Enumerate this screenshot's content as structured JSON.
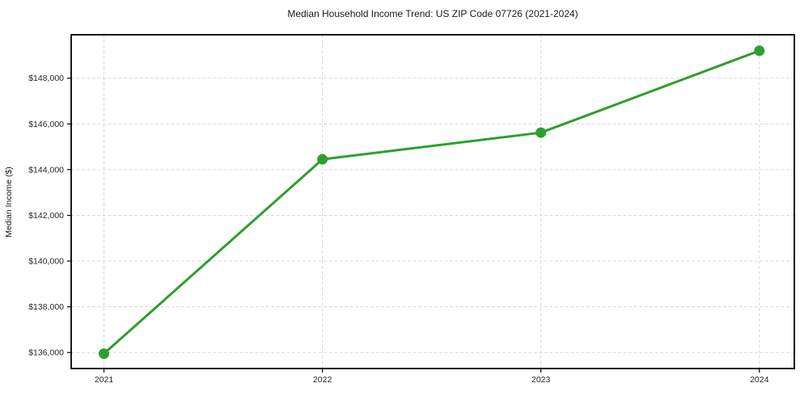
{
  "chart_data": {
    "type": "line",
    "title": "Median Household Income Trend: US ZIP Code 07726 (2021-2024)",
    "xlabel": "",
    "ylabel": "Median Income ($)",
    "x": [
      2021,
      2022,
      2023,
      2024
    ],
    "series": [
      {
        "name": "Median Household Income",
        "values": [
          135950,
          144450,
          145620,
          149200
        ]
      }
    ],
    "x_tick_labels": [
      "2021",
      "2022",
      "2023",
      "2024"
    ],
    "y_ticks": [
      136000,
      138000,
      140000,
      142000,
      144000,
      146000,
      148000
    ],
    "y_tick_labels": [
      "$136,000",
      "$138,000",
      "$140,000",
      "$142,000",
      "$144,000",
      "$146,000",
      "$148,000"
    ],
    "xlim": [
      2020.85,
      2024.16
    ],
    "ylim": [
      135300,
      149900
    ],
    "grid": true,
    "grid_style": "dashed",
    "legend": false,
    "line_color": "#2ca02c",
    "marker": "circle",
    "marker_radius": 6.5,
    "line_width": 3,
    "background_color": "#ffffff",
    "grid_color": "#d9d9d9",
    "spine_color": "#000000",
    "text_color": "#1a1a1a"
  }
}
